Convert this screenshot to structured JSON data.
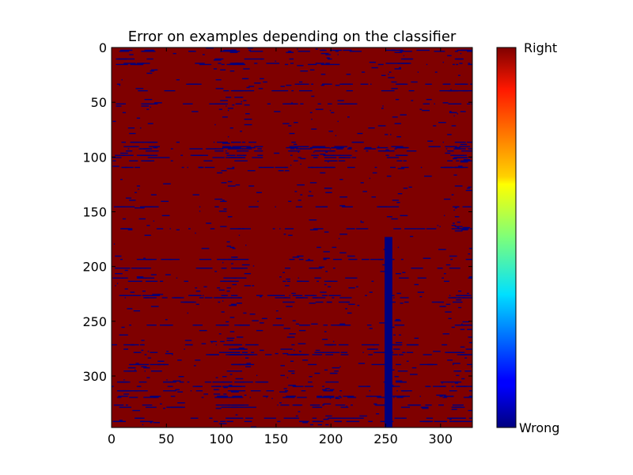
{
  "chart_data": {
    "type": "heatmap",
    "title": "Error on examples depending on the classifier",
    "xlabel": "",
    "ylabel": "",
    "x_range": [
      0,
      329
    ],
    "y_range": [
      0,
      347
    ],
    "y_inverted": true,
    "x_ticks": [
      0,
      50,
      100,
      150,
      200,
      250,
      300
    ],
    "y_ticks": [
      0,
      50,
      100,
      150,
      200,
      250,
      300
    ],
    "grid": false,
    "colormap": "jet",
    "default_value": "Right",
    "colorbar": {
      "labels": [
        "Right",
        "Wrong"
      ],
      "top_label": "Right",
      "bottom_label": "Wrong"
    },
    "notable_regions": [
      {
        "label": "Wrong",
        "x": [
          249,
          256
        ],
        "y": [
          173,
          347
        ]
      }
    ]
  }
}
